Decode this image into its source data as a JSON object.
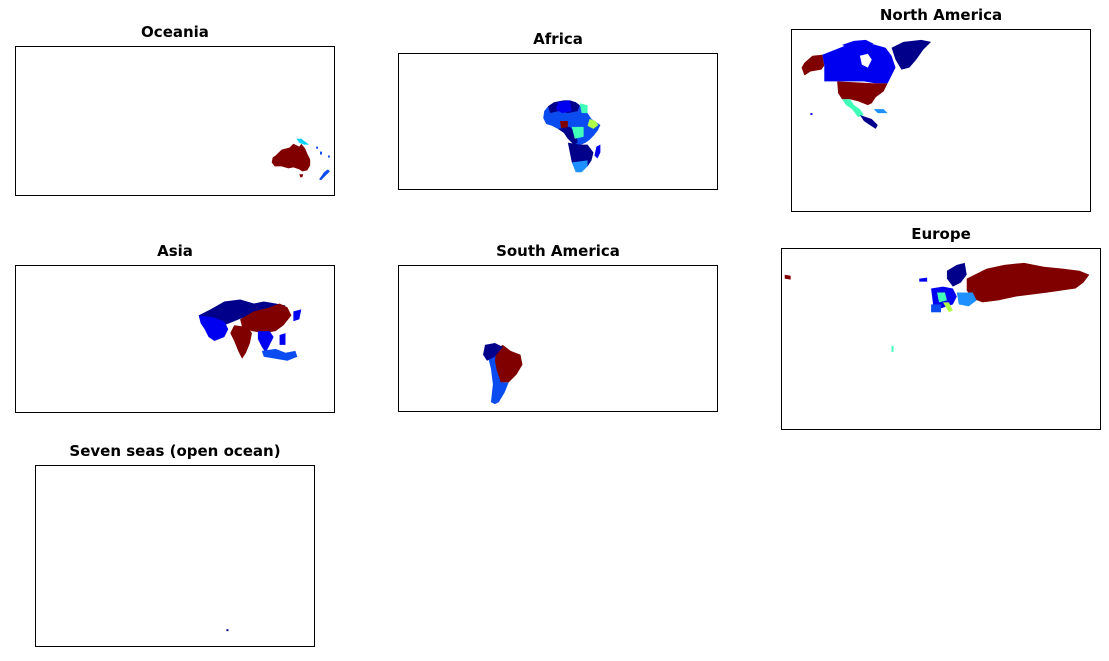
{
  "figure": {
    "panels": [
      {
        "id": "oceania",
        "title": "Oceania"
      },
      {
        "id": "africa",
        "title": "Africa"
      },
      {
        "id": "north-america",
        "title": "North America"
      },
      {
        "id": "asia",
        "title": "Asia"
      },
      {
        "id": "south-america",
        "title": "South America"
      },
      {
        "id": "europe",
        "title": "Europe"
      },
      {
        "id": "seven-seas",
        "title": "Seven seas (open ocean)"
      }
    ]
  },
  "colors": {
    "frame": "#000000",
    "dark_red": "#800000",
    "navy": "#00008b",
    "blue": "#0000f0",
    "medium_blue": "#0a4cf0",
    "azure": "#1e90ff",
    "cyan": "#00d4ff",
    "aquamarine": "#40ffb8",
    "yellow_green": "#b0ff48"
  }
}
